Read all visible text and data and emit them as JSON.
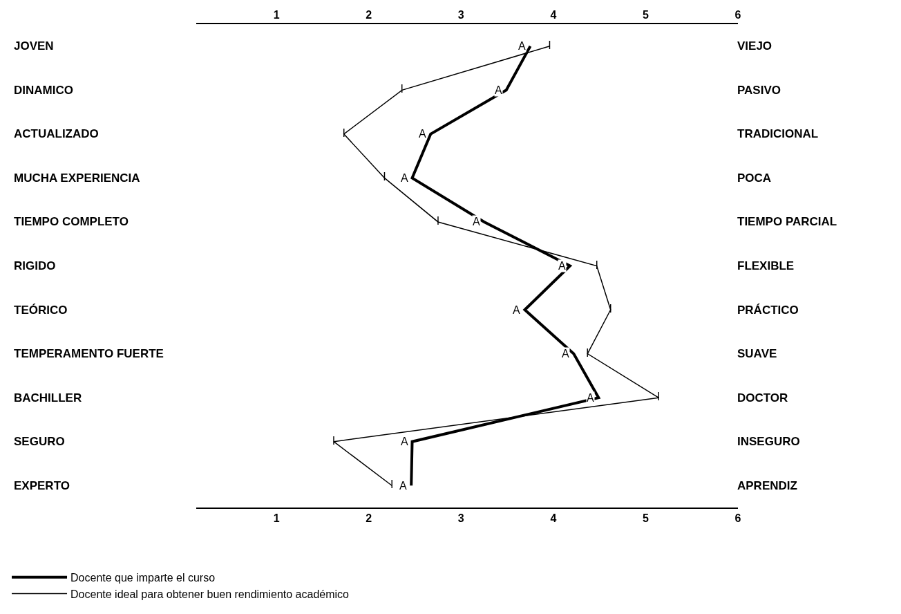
{
  "chart_data": {
    "type": "line",
    "categories": [
      "JOVEN",
      "DINAMICO",
      "ACTUALIZADO",
      "MUCHA EXPERIENCIA",
      "TIEMPO COMPLETO",
      "RIGIDO",
      "TEÓRICO",
      "TEMPERAMENTO FUERTE",
      "BACHILLER",
      "SEGURO",
      "EXPERTO"
    ],
    "y2_categories": [
      "VIEJO",
      "PASIVO",
      "TRADICIONAL",
      "POCA",
      "TIEMPO PARCIAL",
      "FLEXIBLE",
      "PRÁCTICO",
      "SUAVE",
      "DOCTOR",
      "INSEGURO",
      "APRENDIZ"
    ],
    "orientation": "horizontal",
    "series": [
      {
        "name": "Docente que imparte el curso",
        "color": "#000000",
        "values": [
          3.75,
          3.49,
          2.67,
          2.47,
          3.25,
          4.18,
          3.69,
          4.22,
          4.49,
          2.47,
          2.46
        ],
        "value_labels": [
          "A",
          "A",
          "A",
          "A",
          "A",
          "A",
          "A",
          "A",
          "A",
          "A",
          "A"
        ]
      },
      {
        "name": "Docente ideal para obtener buen rendimiento académico",
        "color": "#000000",
        "values": [
          3.96,
          2.36,
          1.73,
          2.17,
          2.75,
          4.47,
          4.62,
          4.37,
          5.14,
          1.62,
          2.25
        ],
        "value_labels": [
          "I",
          "I",
          "I",
          "I",
          "I",
          "I",
          "I",
          "I",
          "I",
          "I",
          "I"
        ]
      }
    ],
    "xlim": [
      0.13,
      6
    ],
    "xticks": [
      1,
      2,
      3,
      4,
      5,
      6
    ],
    "x2lim": [
      0.13,
      6
    ],
    "x2ticks": [
      1,
      2,
      3,
      4,
      5,
      6
    ],
    "legend": "bottom left",
    "marker": "none"
  }
}
